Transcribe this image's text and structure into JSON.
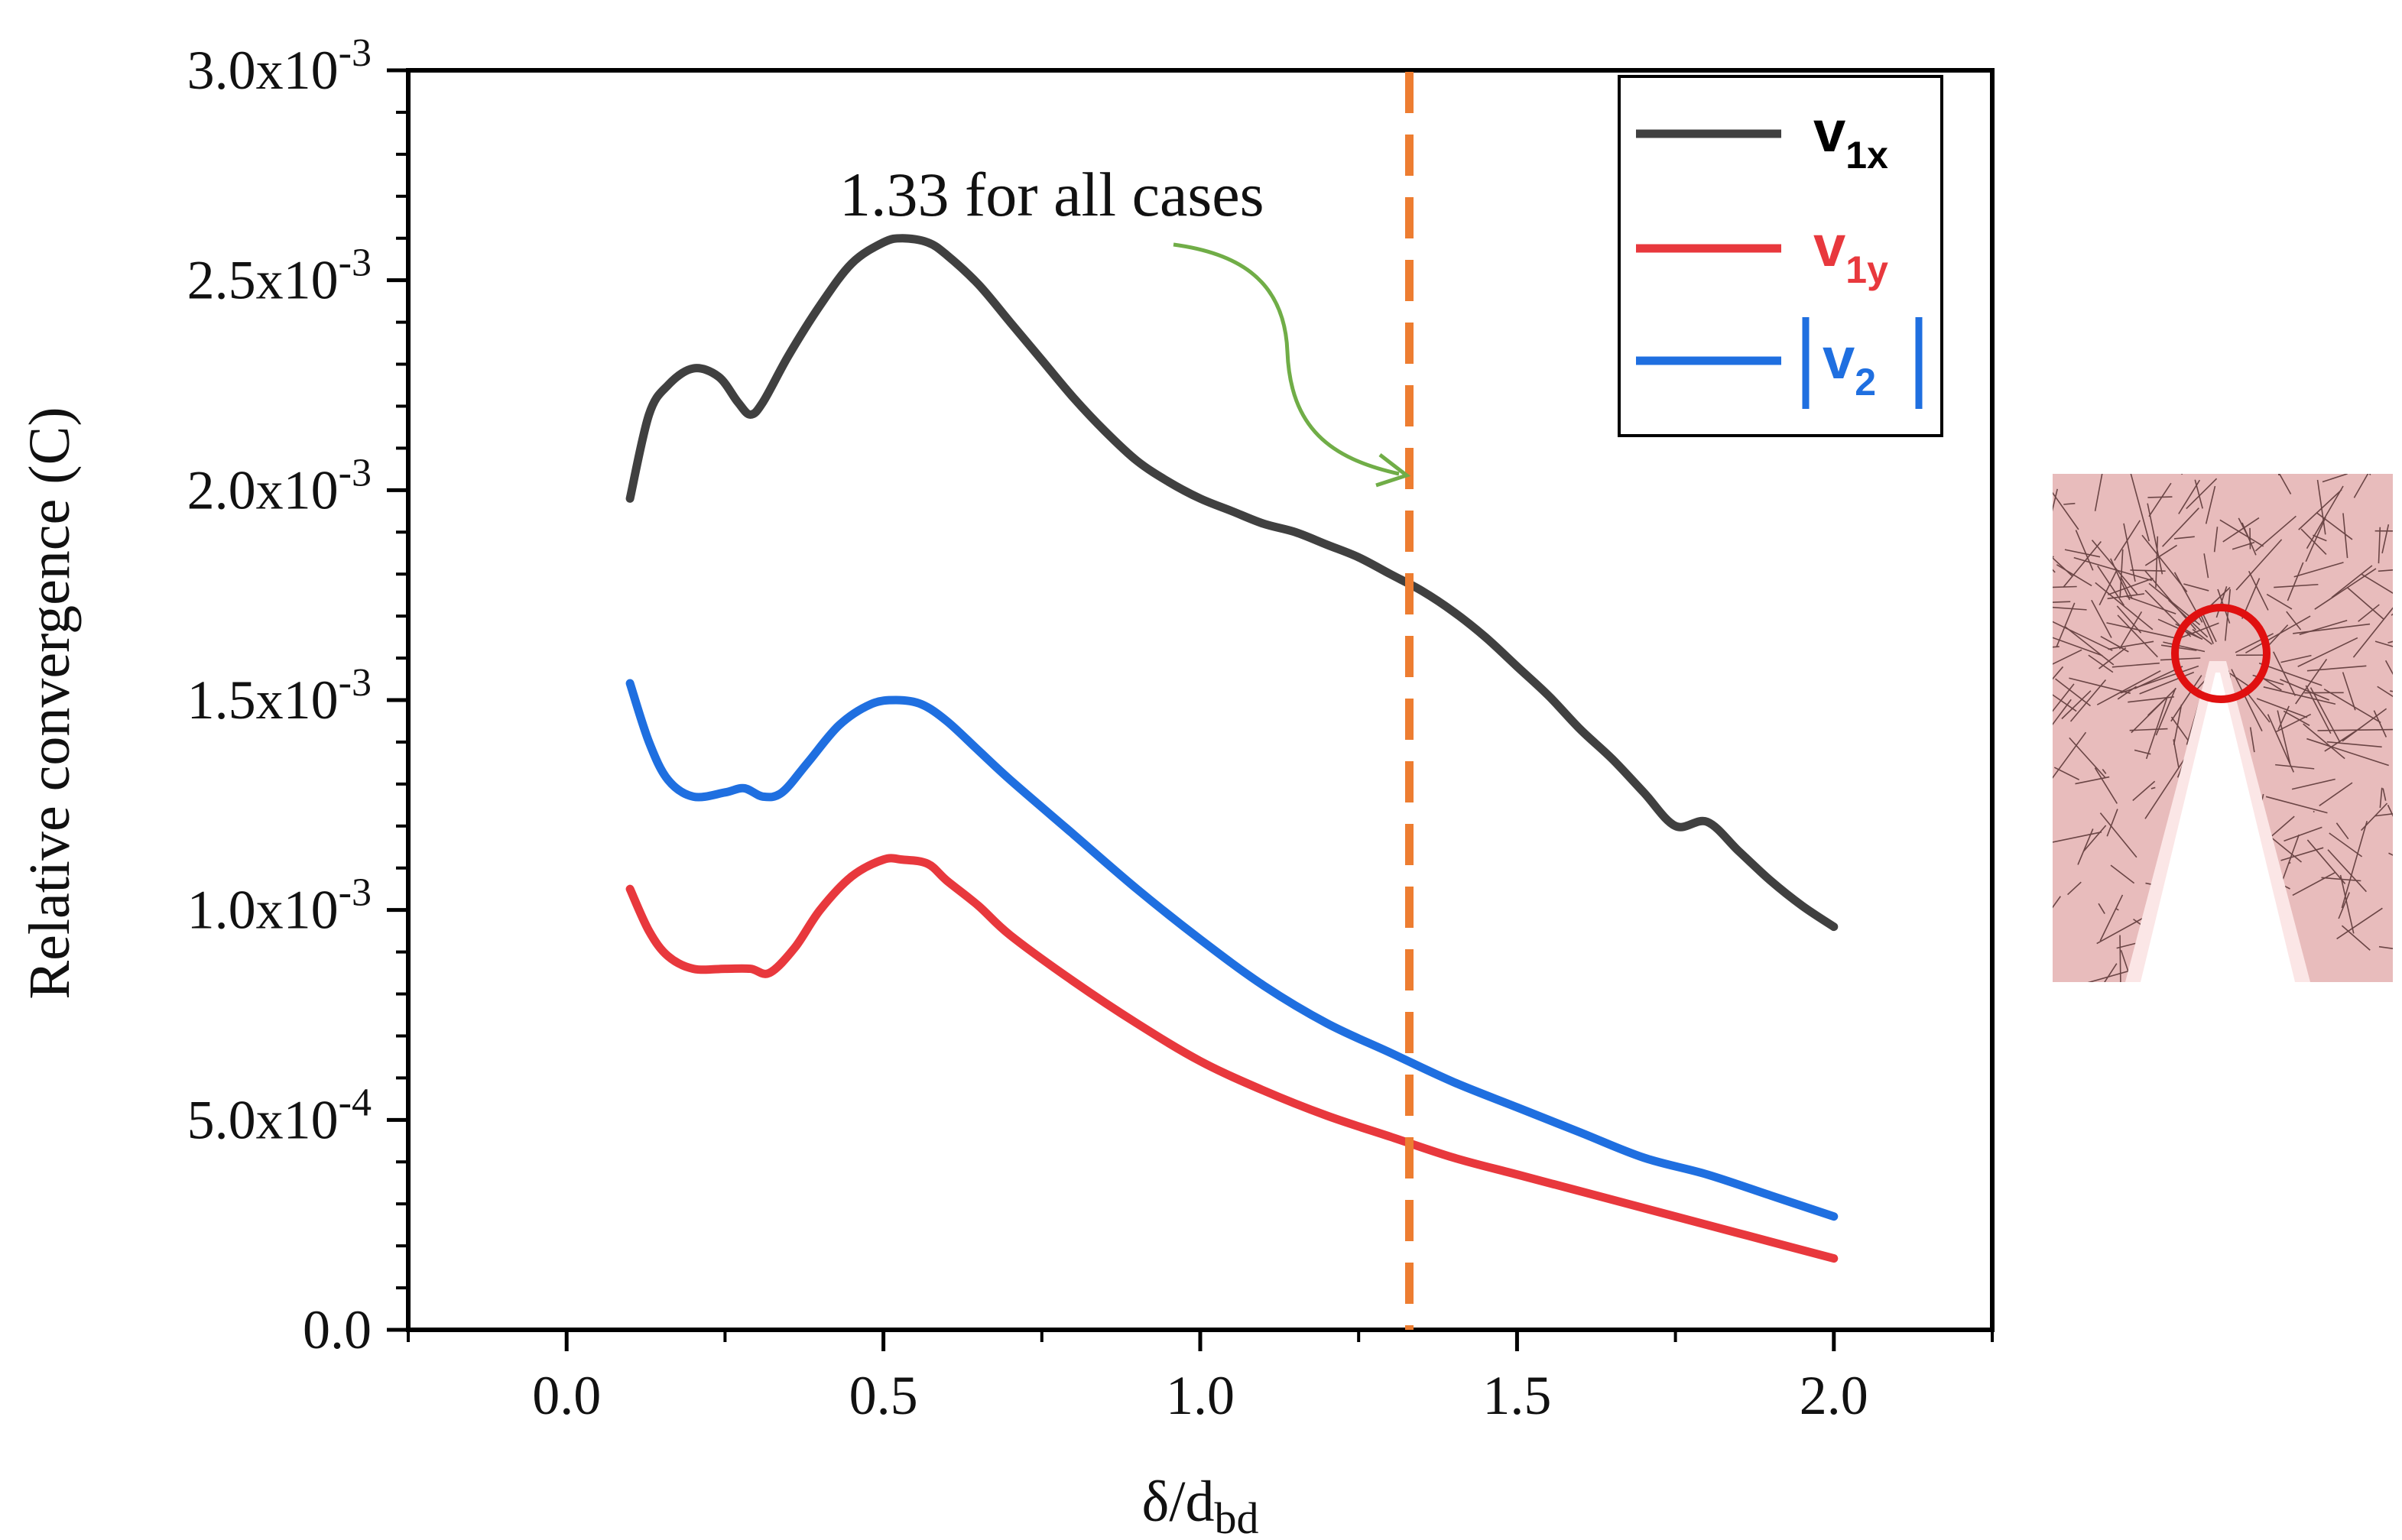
{
  "chart_data": {
    "type": "line",
    "title": "",
    "xlabel": "δ/d",
    "xlabel_sub": "bd",
    "ylabel": "Relative convergence (C)",
    "xlim": [
      -0.25,
      2.25
    ],
    "ylim": [
      0,
      0.003
    ],
    "x_ticks": [
      {
        "value": 0.0,
        "label": "0.0"
      },
      {
        "value": 0.5,
        "label": "0.5"
      },
      {
        "value": 1.0,
        "label": "1.0"
      },
      {
        "value": 1.5,
        "label": "1.5"
      },
      {
        "value": 2.0,
        "label": "2.0"
      }
    ],
    "y_ticks": [
      {
        "value": 0.0,
        "base": "0.0",
        "exp": ""
      },
      {
        "value": 0.0005,
        "base": "5.0x10",
        "exp": "-4"
      },
      {
        "value": 0.001,
        "base": "1.0x10",
        "exp": "-3"
      },
      {
        "value": 0.0015,
        "base": "1.5x10",
        "exp": "-3"
      },
      {
        "value": 0.002,
        "base": "2.0x10",
        "exp": "-3"
      },
      {
        "value": 0.0025,
        "base": "2.5x10",
        "exp": "-3"
      },
      {
        "value": 0.003,
        "base": "3.0x10",
        "exp": "-3"
      }
    ],
    "series": [
      {
        "name": "v1x",
        "label_main": "v",
        "label_sub": "1x",
        "color": "#404040",
        "points": [
          [
            0.1,
            0.00198
          ],
          [
            0.13,
            0.00218
          ],
          [
            0.16,
            0.00225
          ],
          [
            0.2,
            0.00229
          ],
          [
            0.24,
            0.00227
          ],
          [
            0.27,
            0.00221
          ],
          [
            0.29,
            0.00218
          ],
          [
            0.31,
            0.00221
          ],
          [
            0.35,
            0.00232
          ],
          [
            0.4,
            0.00244
          ],
          [
            0.45,
            0.00254
          ],
          [
            0.5,
            0.00259
          ],
          [
            0.53,
            0.0026
          ],
          [
            0.57,
            0.00259
          ],
          [
            0.6,
            0.00256
          ],
          [
            0.65,
            0.00249
          ],
          [
            0.7,
            0.0024
          ],
          [
            0.75,
            0.00231
          ],
          [
            0.8,
            0.00222
          ],
          [
            0.85,
            0.00214
          ],
          [
            0.9,
            0.00207
          ],
          [
            0.95,
            0.00202
          ],
          [
            1.0,
            0.00198
          ],
          [
            1.05,
            0.00195
          ],
          [
            1.1,
            0.00192
          ],
          [
            1.15,
            0.0019
          ],
          [
            1.2,
            0.00187
          ],
          [
            1.25,
            0.00184
          ],
          [
            1.3,
            0.0018
          ],
          [
            1.35,
            0.00176
          ],
          [
            1.4,
            0.00171
          ],
          [
            1.45,
            0.00165
          ],
          [
            1.5,
            0.00158
          ],
          [
            1.55,
            0.00151
          ],
          [
            1.6,
            0.00143
          ],
          [
            1.65,
            0.00136
          ],
          [
            1.7,
            0.00128
          ],
          [
            1.75,
            0.0012
          ],
          [
            1.8,
            0.00121
          ],
          [
            1.85,
            0.00114
          ],
          [
            1.9,
            0.00107
          ],
          [
            1.95,
            0.00101
          ],
          [
            2.0,
            0.00096
          ]
        ]
      },
      {
        "name": "v1y",
        "label_main": "v",
        "label_sub": "1y",
        "color": "#e8383d",
        "points": [
          [
            0.1,
            0.00105
          ],
          [
            0.13,
            0.00095
          ],
          [
            0.16,
            0.00089
          ],
          [
            0.2,
            0.00086
          ],
          [
            0.25,
            0.00086
          ],
          [
            0.29,
            0.00086
          ],
          [
            0.32,
            0.00085
          ],
          [
            0.36,
            0.00091
          ],
          [
            0.4,
            0.001
          ],
          [
            0.45,
            0.00108
          ],
          [
            0.5,
            0.00112
          ],
          [
            0.53,
            0.00112
          ],
          [
            0.57,
            0.00111
          ],
          [
            0.6,
            0.00107
          ],
          [
            0.65,
            0.00101
          ],
          [
            0.7,
            0.00094
          ],
          [
            0.8,
            0.00083
          ],
          [
            0.9,
            0.00073
          ],
          [
            1.0,
            0.00064
          ],
          [
            1.1,
            0.00057
          ],
          [
            1.2,
            0.00051
          ],
          [
            1.3,
            0.00046
          ],
          [
            1.4,
            0.00041
          ],
          [
            1.5,
            0.00037
          ],
          [
            1.6,
            0.00033
          ],
          [
            1.7,
            0.00029
          ],
          [
            1.8,
            0.00025
          ],
          [
            1.9,
            0.00021
          ],
          [
            2.0,
            0.00017
          ]
        ]
      },
      {
        "name": "v2",
        "label_main": "v",
        "label_sub": "2",
        "color": "#1f6fe0",
        "points": [
          [
            0.1,
            0.00154
          ],
          [
            0.13,
            0.0014
          ],
          [
            0.16,
            0.00131
          ],
          [
            0.2,
            0.00127
          ],
          [
            0.25,
            0.00128
          ],
          [
            0.28,
            0.00129
          ],
          [
            0.31,
            0.00127
          ],
          [
            0.34,
            0.00128
          ],
          [
            0.38,
            0.00135
          ],
          [
            0.43,
            0.00144
          ],
          [
            0.48,
            0.00149
          ],
          [
            0.52,
            0.0015
          ],
          [
            0.56,
            0.00149
          ],
          [
            0.6,
            0.00145
          ],
          [
            0.65,
            0.00138
          ],
          [
            0.7,
            0.00131
          ],
          [
            0.8,
            0.00118
          ],
          [
            0.9,
            0.00105
          ],
          [
            1.0,
            0.00093
          ],
          [
            1.1,
            0.00082
          ],
          [
            1.2,
            0.00073
          ],
          [
            1.3,
            0.00066
          ],
          [
            1.4,
            0.00059
          ],
          [
            1.5,
            0.00053
          ],
          [
            1.6,
            0.00047
          ],
          [
            1.7,
            0.00041
          ],
          [
            1.8,
            0.00037
          ],
          [
            1.9,
            0.00032
          ],
          [
            2.0,
            0.00027
          ]
        ]
      }
    ],
    "vline": {
      "x": 1.33,
      "color": "#ed7d31",
      "style": "dashed"
    },
    "annotation": {
      "text": "1.33 for all cases",
      "arrow_color": "#70ad47"
    },
    "legend_position": "top-right"
  },
  "inset": {
    "description_name": "mesh-notch-inset",
    "background": "#e8bcbc",
    "mesh_color": "#6a4545",
    "circle_color": "#e01010"
  }
}
